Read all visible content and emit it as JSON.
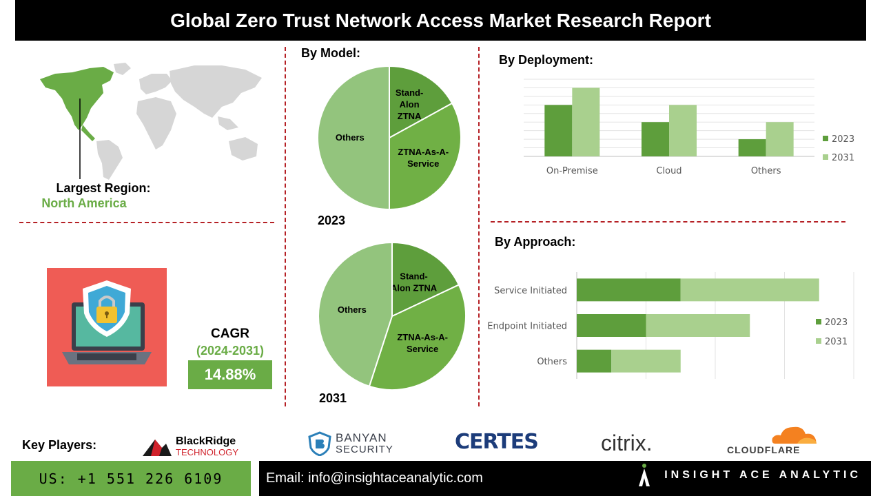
{
  "header": {
    "title": "Global Zero Trust Network Access Market Research Report"
  },
  "region": {
    "label": "Largest Region:",
    "value": "North America"
  },
  "cagr": {
    "label": "CAGR",
    "years": "(2024-2031)",
    "value": "14.88%"
  },
  "model": {
    "title": "By Model:"
  },
  "deployment": {
    "title": "By  Deployment:"
  },
  "approach": {
    "title": "By Approach:"
  },
  "colors": {
    "dark_green": "#5e9e3c",
    "mid_green": "#70b045",
    "light_green": "#93c47d",
    "pale_green": "#a9d08e",
    "accent_red": "#b52025"
  },
  "chart_data": [
    {
      "type": "pie",
      "title": "2023",
      "labels": [
        "Stand-Alon ZTNA",
        "ZTNA-As-A-Service",
        "Others"
      ],
      "values": [
        17,
        33,
        50
      ]
    },
    {
      "type": "pie",
      "title": "2031",
      "labels": [
        "Stand-Alon ZTNA",
        "ZTNA-As-A-Service",
        "Others"
      ],
      "values": [
        18,
        37,
        45
      ]
    },
    {
      "type": "bar",
      "title": "By  Deployment:",
      "categories": [
        "On-Premise",
        "Cloud",
        "Others"
      ],
      "series": [
        {
          "name": "2023",
          "values": [
            3,
            2,
            1
          ]
        },
        {
          "name": "2031",
          "values": [
            4,
            3,
            2
          ]
        }
      ],
      "ylim": [
        0,
        4.5
      ],
      "grid": true,
      "legend": "right"
    },
    {
      "type": "bar",
      "orientation": "horizontal",
      "stacked": true,
      "title": "By Approach:",
      "categories": [
        "Service Initiated",
        "Endpoint Initiated",
        "Others"
      ],
      "series": [
        {
          "name": "2023",
          "values": [
            3,
            2,
            1
          ]
        },
        {
          "name": "2031",
          "values": [
            4,
            3,
            2
          ]
        }
      ],
      "xlim": [
        0,
        8
      ],
      "grid": true,
      "legend": "right"
    }
  ],
  "key_players": {
    "label": "Key Players:",
    "logos": [
      {
        "line1": "BlackRidge",
        "line2": "TECHNOLOGY"
      },
      {
        "line1": "BANYAN",
        "line2": "SECURITY"
      },
      {
        "line1": "CERTES"
      },
      {
        "line1": "citrix."
      },
      {
        "line1": "CLOUDFLARE"
      }
    ]
  },
  "footer": {
    "phone": "US: +1 551 226 6109",
    "email": "Email: info@insightaceanalytic.com",
    "brand": "INSIGHT ACE ANALYTIC"
  }
}
